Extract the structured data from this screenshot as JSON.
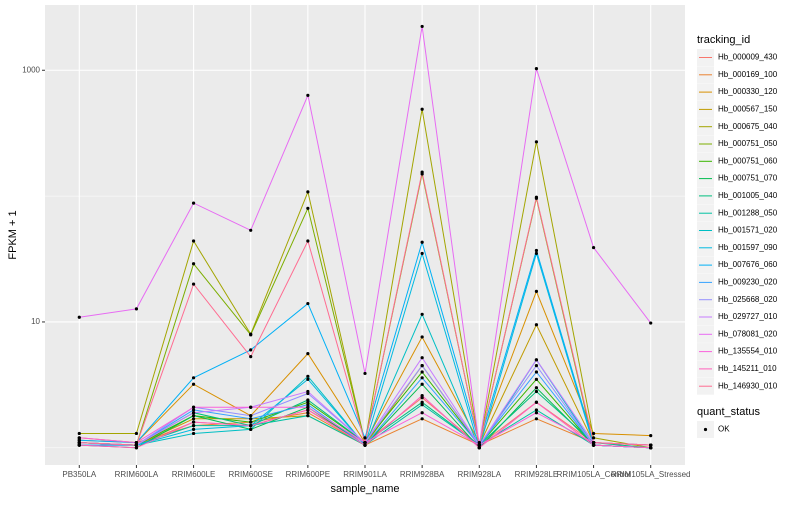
{
  "chart_data": {
    "type": "line",
    "x_label": "sample_name",
    "y_label": "FPKM + 1",
    "categories": [
      "PB350LA",
      "RRIM600LA",
      "RRIM600LE",
      "RRIM600SE",
      "RRIM600PE",
      "RRIM901LA",
      "RRIM928BA",
      "RRIM928LA",
      "RRIM928LE",
      "RRIM105LA_Control",
      "RRIM105LA_Stressed"
    ],
    "log_y": true,
    "ylim": [
      0.73,
      3300
    ],
    "yticks": [
      10,
      1000
    ],
    "y_minor_breaks": [
      1,
      100
    ],
    "grid": true,
    "legend_title": "tracking_id",
    "legend_position": "right",
    "point_color": "#000000",
    "shape_legend": {
      "title": "quant_status",
      "labels": [
        "OK"
      ]
    },
    "series": [
      {
        "name": "Hb_000009_430",
        "color": "#F8766D",
        "values": [
          1.1,
          1.05,
          1.6,
          1.5,
          2.0,
          1.1,
          2.5,
          1.05,
          2.3,
          1.1,
          1.05
        ]
      },
      {
        "name": "Hb_000169_100",
        "color": "#EA8331",
        "values": [
          1.15,
          1.1,
          1.5,
          1.6,
          1.9,
          1.05,
          1.7,
          1.05,
          1.7,
          1.1,
          1.05
        ]
      },
      {
        "name": "Hb_000330_120",
        "color": "#D89000",
        "values": [
          1.2,
          1.1,
          3.2,
          1.8,
          5.6,
          1.1,
          7.6,
          1.1,
          17.5,
          1.3,
          1.25
        ]
      },
      {
        "name": "Hb_000567_150",
        "color": "#C09B00",
        "values": [
          1.1,
          1.05,
          1.7,
          1.7,
          1.8,
          1.05,
          4.5,
          1.05,
          9.5,
          1.1,
          1.05
        ]
      },
      {
        "name": "Hb_000675_040",
        "color": "#A3A500",
        "values": [
          1.3,
          1.3,
          44,
          8,
          108,
          1.1,
          490,
          1.05,
          270,
          1.2,
          1.0
        ]
      },
      {
        "name": "Hb_000751_050",
        "color": "#7CAE00",
        "values": [
          1.1,
          1.05,
          29,
          7.9,
          80,
          1.1,
          150,
          1.05,
          96,
          1.05,
          1.0
        ]
      },
      {
        "name": "Hb_000751_060",
        "color": "#39B600",
        "values": [
          1.05,
          1.05,
          1.8,
          1.6,
          2.3,
          1.1,
          4.0,
          1.05,
          3.5,
          1.05,
          1.0
        ]
      },
      {
        "name": "Hb_000751_070",
        "color": "#00BB4E",
        "values": [
          1.05,
          1.0,
          1.8,
          1.4,
          2.1,
          1.05,
          3.2,
          1.0,
          3.0,
          1.05,
          1.0
        ]
      },
      {
        "name": "Hb_001005_040",
        "color": "#00BF7D",
        "values": [
          1.1,
          1.05,
          1.9,
          1.5,
          2.4,
          1.1,
          2.3,
          1.05,
          2.8,
          1.1,
          1.0
        ]
      },
      {
        "name": "Hb_001288_050",
        "color": "#00C1A3",
        "values": [
          1.1,
          1.05,
          1.5,
          1.5,
          1.8,
          1.05,
          2.2,
          1.05,
          2.0,
          1.05,
          1.0
        ]
      },
      {
        "name": "Hb_001571_020",
        "color": "#00BFC4",
        "values": [
          1.1,
          1.05,
          1.3,
          1.4,
          3.7,
          1.05,
          11.5,
          1.0,
          5.0,
          1.05,
          1.0
        ]
      },
      {
        "name": "Hb_001597_090",
        "color": "#00BAE0",
        "values": [
          1.05,
          1.05,
          1.4,
          1.5,
          3.5,
          1.05,
          35,
          1.0,
          35,
          1.05,
          1.0
        ]
      },
      {
        "name": "Hb_007676_060",
        "color": "#00B0F6",
        "values": [
          1.15,
          1.1,
          3.6,
          6.0,
          14,
          1.2,
          43,
          1.1,
          37,
          1.1,
          1.05
        ]
      },
      {
        "name": "Hb_009230_020",
        "color": "#35A2FF",
        "values": [
          1.05,
          1.05,
          2.0,
          1.7,
          2.2,
          1.05,
          3.6,
          1.05,
          4.0,
          1.05,
          1.0
        ]
      },
      {
        "name": "Hb_025668_020",
        "color": "#9590FF",
        "values": [
          1.1,
          1.05,
          2.1,
          1.8,
          2.7,
          1.1,
          4.5,
          1.05,
          4.5,
          1.05,
          1.0
        ]
      },
      {
        "name": "Hb_029727_010",
        "color": "#C77CFF",
        "values": [
          1.1,
          1.05,
          1.9,
          2.1,
          2.8,
          1.1,
          5.2,
          1.05,
          5.0,
          1.1,
          1.05
        ]
      },
      {
        "name": "Hb_078081_020",
        "color": "#E76BF3",
        "values": [
          10.9,
          12.7,
          88,
          53.5,
          632,
          3.9,
          2230,
          1.05,
          1030,
          39,
          9.8
        ]
      },
      {
        "name": "Hb_135554_010",
        "color": "#FA62DB",
        "values": [
          1.2,
          1.1,
          2.1,
          2.1,
          2.1,
          1.1,
          1.9,
          1.05,
          1.9,
          1.1,
          1.05
        ]
      },
      {
        "name": "Hb_145211_010",
        "color": "#FF62BC",
        "values": [
          1.05,
          1.0,
          1.6,
          1.5,
          2.0,
          1.05,
          2.6,
          1.0,
          2.3,
          1.05,
          1.0
        ]
      },
      {
        "name": "Hb_146930_010",
        "color": "#FF6C91",
        "values": [
          1.1,
          1.05,
          20,
          5.3,
          44,
          1.1,
          155,
          1.05,
          98,
          1.1,
          1.05
        ]
      }
    ]
  }
}
